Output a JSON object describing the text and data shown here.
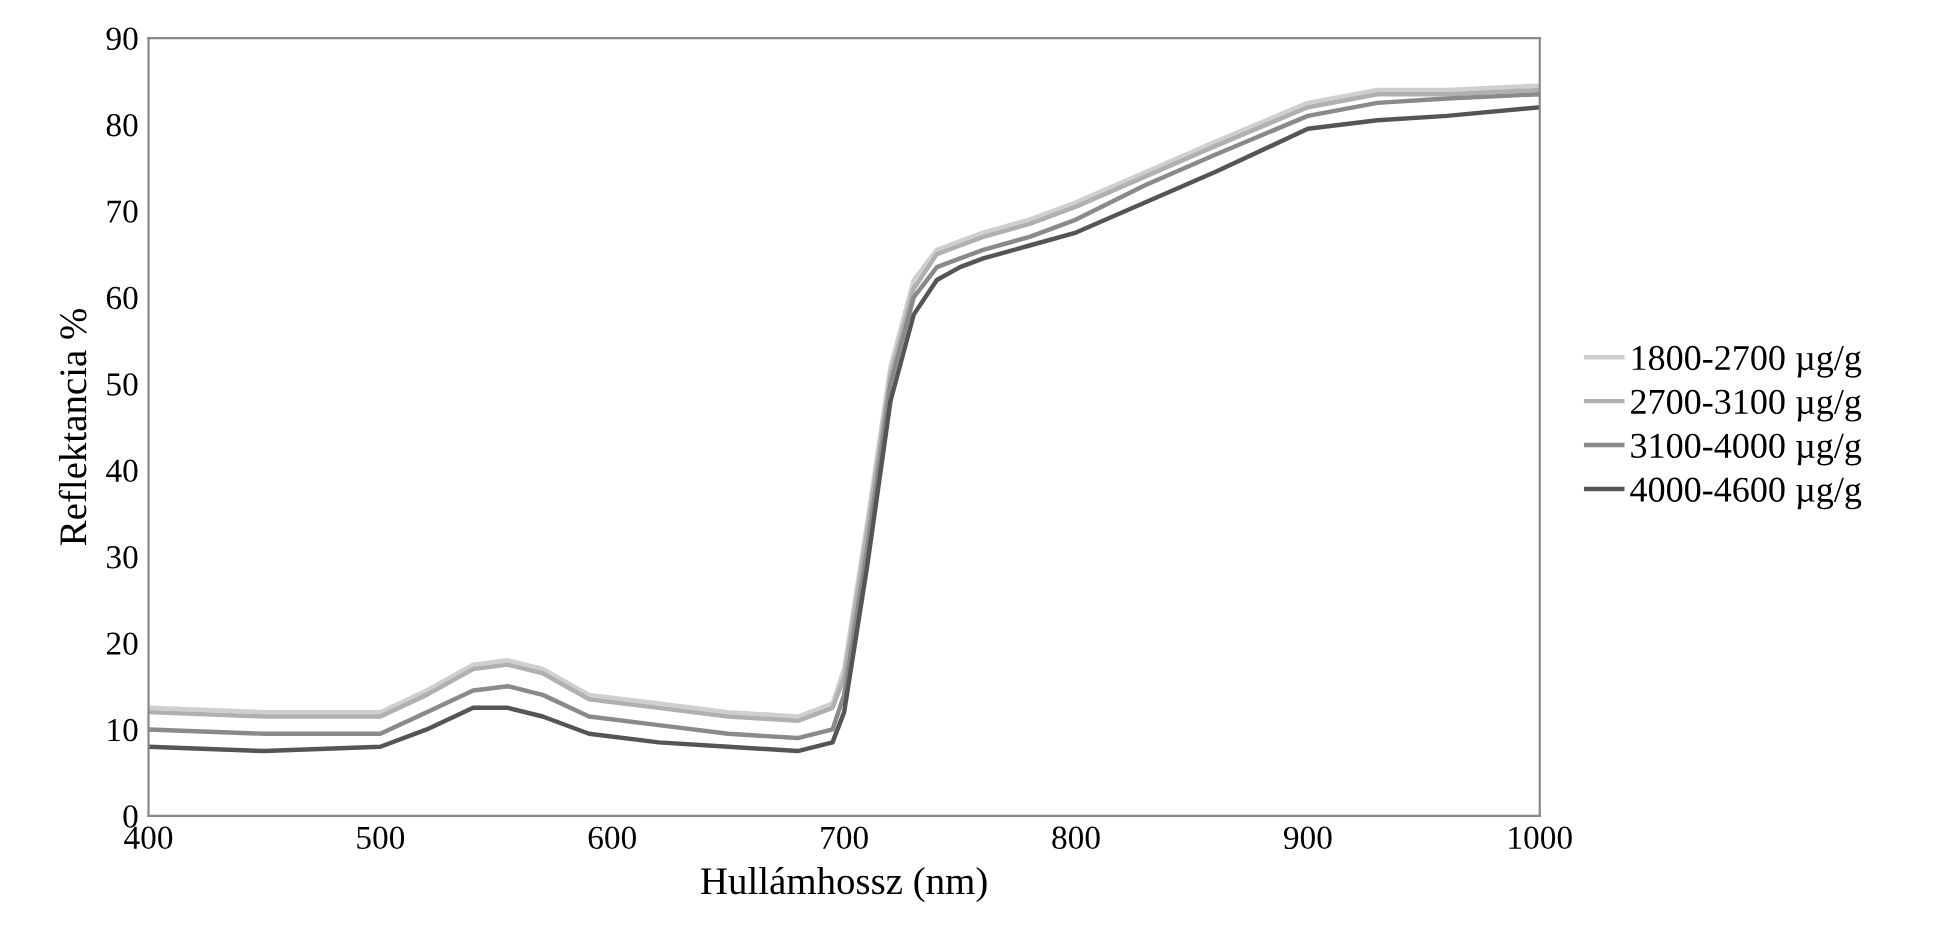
{
  "chart_data": {
    "type": "line",
    "xlabel": "Hullámhossz (nm)",
    "ylabel": "Reflektancia %",
    "x": [
      400,
      450,
      500,
      520,
      540,
      555,
      570,
      590,
      620,
      650,
      680,
      695,
      700,
      710,
      720,
      730,
      740,
      750,
      760,
      780,
      800,
      830,
      860,
      900,
      930,
      960,
      1000
    ],
    "series": [
      {
        "name": "1800-2700 µg/g",
        "color": "#cfcfcf",
        "values": [
          12.5,
          12,
          12,
          14.5,
          17.5,
          18,
          17,
          14,
          13,
          12,
          11.5,
          13,
          17,
          34,
          52,
          62,
          65.5,
          66.5,
          67.5,
          69,
          71,
          74.5,
          78,
          82.5,
          84,
          84,
          84.5
        ]
      },
      {
        "name": "2700-3100 µg/g",
        "color": "#b0b0b0",
        "values": [
          12,
          11.5,
          11.5,
          14,
          17,
          17.5,
          16.5,
          13.5,
          12.5,
          11.5,
          11,
          12.5,
          16,
          33,
          51,
          61,
          65,
          66,
          67,
          68.5,
          70.5,
          74,
          77.5,
          82,
          83.5,
          83.5,
          84
        ]
      },
      {
        "name": "3100-4000 µg/g",
        "color": "#8a8a8a",
        "values": [
          10,
          9.5,
          9.5,
          12,
          14.5,
          15,
          14,
          11.5,
          10.5,
          9.5,
          9,
          10,
          14,
          31,
          50,
          60,
          63.5,
          64.5,
          65.5,
          67,
          69,
          73,
          76.5,
          81,
          82.5,
          83,
          83.5
        ]
      },
      {
        "name": "4000-4600 µg/g",
        "color": "#555555",
        "values": [
          8,
          7.5,
          8,
          10,
          12.5,
          12.5,
          11.5,
          9.5,
          8.5,
          8,
          7.5,
          8.5,
          12,
          29,
          48,
          58,
          62,
          63.5,
          64.5,
          66,
          67.5,
          71,
          74.5,
          79.5,
          80.5,
          81,
          82
        ]
      }
    ],
    "xlim": [
      400,
      1000
    ],
    "ylim": [
      0,
      90
    ],
    "xticks": [
      400,
      500,
      600,
      700,
      800,
      900,
      1000
    ],
    "yticks": [
      0,
      10,
      20,
      30,
      40,
      50,
      60,
      70,
      80,
      90
    ],
    "grid": false,
    "legend": "right",
    "marker": "none",
    "line_style": "solid"
  }
}
